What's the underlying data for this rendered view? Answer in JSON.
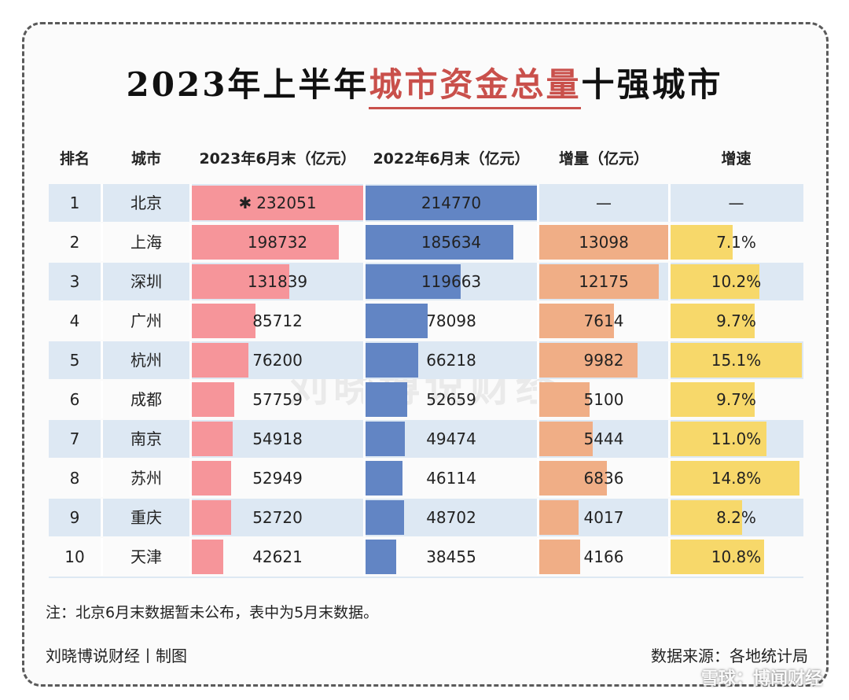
{
  "title": {
    "pre": "2023年上半年",
    "highlight": "城市资金总量",
    "post": "十强城市"
  },
  "headers": [
    "排名",
    "城市",
    "2023年6月末（亿元）",
    "2022年6月末（亿元）",
    "增量（亿元）",
    "增速"
  ],
  "star": "✱",
  "watermark": "刘晓博说财经",
  "colors": {
    "col2023": "#f6959a",
    "col2022": "#6285c4",
    "increase": "#f0ae86",
    "growth": "#f7d86a",
    "stripe": "#dde8f3"
  },
  "chart_data": {
    "type": "table",
    "rows": [
      {
        "rank": "1",
        "city": "北京",
        "v2023": "232051",
        "v2022": "214770",
        "increase": "—",
        "growth": "—",
        "n2023": 232051,
        "n2022": 214770,
        "ninc": null,
        "ngr": null
      },
      {
        "rank": "2",
        "city": "上海",
        "v2023": "198732",
        "v2022": "185634",
        "increase": "13098",
        "growth": "7.1%",
        "n2023": 198732,
        "n2022": 185634,
        "ninc": 13098,
        "ngr": 7.1
      },
      {
        "rank": "3",
        "city": "深圳",
        "v2023": "131839",
        "v2022": "119663",
        "increase": "12175",
        "growth": "10.2%",
        "n2023": 131839,
        "n2022": 119663,
        "ninc": 12175,
        "ngr": 10.2
      },
      {
        "rank": "4",
        "city": "广州",
        "v2023": "85712",
        "v2022": "78098",
        "increase": "7614",
        "growth": "9.7%",
        "n2023": 85712,
        "n2022": 78098,
        "ninc": 7614,
        "ngr": 9.7
      },
      {
        "rank": "5",
        "city": "杭州",
        "v2023": "76200",
        "v2022": "66218",
        "increase": "9982",
        "growth": "15.1%",
        "n2023": 76200,
        "n2022": 66218,
        "ninc": 9982,
        "ngr": 15.1
      },
      {
        "rank": "6",
        "city": "成都",
        "v2023": "57759",
        "v2022": "52659",
        "increase": "5100",
        "growth": "9.7%",
        "n2023": 57759,
        "n2022": 52659,
        "ninc": 5100,
        "ngr": 9.7
      },
      {
        "rank": "7",
        "city": "南京",
        "v2023": "54918",
        "v2022": "49474",
        "increase": "5444",
        "growth": "11.0%",
        "n2023": 54918,
        "n2022": 49474,
        "ninc": 5444,
        "ngr": 11.0
      },
      {
        "rank": "8",
        "city": "苏州",
        "v2023": "52949",
        "v2022": "46114",
        "increase": "6836",
        "growth": "14.8%",
        "n2023": 52949,
        "n2022": 46114,
        "ninc": 6836,
        "ngr": 14.8
      },
      {
        "rank": "9",
        "city": "重庆",
        "v2023": "52720",
        "v2022": "48702",
        "increase": "4017",
        "growth": "8.2%",
        "n2023": 52720,
        "n2022": 48702,
        "ninc": 4017,
        "ngr": 8.2
      },
      {
        "rank": "10",
        "city": "天津",
        "v2023": "42621",
        "v2022": "38455",
        "increase": "4166",
        "growth": "10.8%",
        "n2023": 42621,
        "n2022": 38455,
        "ninc": 4166,
        "ngr": 10.8
      }
    ]
  },
  "note": "注：北京6月末数据暂未公布，表中为5月末数据。",
  "footer": {
    "left": "刘晓博说财经丨制图",
    "right": "数据来源：各地统计局"
  },
  "corner_mark": "雪球：博闻财经"
}
